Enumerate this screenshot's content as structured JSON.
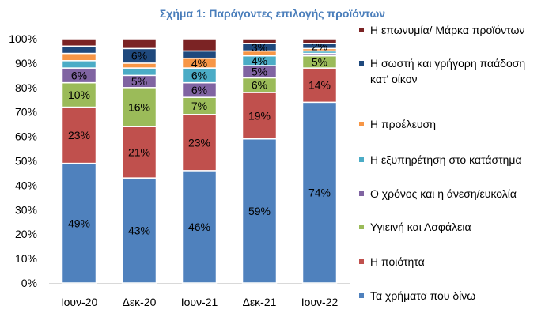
{
  "chart_data": {
    "type": "bar",
    "stacked": true,
    "title": "Σχήμα 1: Παράγοντες επιλογής προϊόντων",
    "categories": [
      "Ιουν-20",
      "Δεκ-20",
      "Ιουν-21",
      "Δεκ-21",
      "Ιουν-22"
    ],
    "ylim": [
      0,
      100
    ],
    "yticks": [
      "0%",
      "10%",
      "20%",
      "30%",
      "40%",
      "50%",
      "60%",
      "70%",
      "80%",
      "90%",
      "100%"
    ],
    "series": [
      {
        "name": "Τα χρήματα που δίνω",
        "color": "#4f81bd",
        "values": [
          49,
          43,
          46,
          59,
          74
        ],
        "labels": [
          "49%",
          "43%",
          "46%",
          "59%",
          "74%"
        ],
        "label_color": "#000000"
      },
      {
        "name": "Η ποιότητα",
        "color": "#c0504d",
        "values": [
          23,
          21,
          23,
          19,
          14
        ],
        "labels": [
          "23%",
          "21%",
          "23%",
          "19%",
          "14%"
        ],
        "label_color": "#000000"
      },
      {
        "name": "Υγιεινή και Ασφάλεια",
        "color": "#9bbb59",
        "values": [
          10,
          16,
          7,
          6,
          5
        ],
        "labels": [
          "10%",
          "16%",
          "7%",
          "6%",
          "5%"
        ],
        "label_color": "#000000"
      },
      {
        "name": "Ο χρόνος και η άνεση/ευκολία",
        "color": "#8064a2",
        "values": [
          6,
          5,
          6,
          5,
          1
        ],
        "labels": [
          "6%",
          "5%",
          "6%",
          "5%",
          ""
        ],
        "label_color": "#000000"
      },
      {
        "name": "Η εξυπηρέτηση στο κατάστημα",
        "color": "#4bacc6",
        "values": [
          3,
          3,
          6,
          4,
          1
        ],
        "labels": [
          "",
          "",
          "6%",
          "4%",
          ""
        ],
        "label_color": "#000000"
      },
      {
        "name": "Η προέλευση",
        "color": "#f79646",
        "values": [
          3,
          2,
          4,
          2,
          1
        ],
        "labels": [
          "",
          "",
          "4%",
          "",
          ""
        ],
        "label_color": "#000000"
      },
      {
        "name": "Η σωστή και γρήγορη παάδοση κατ' οίκον",
        "color": "#1f497d",
        "values": [
          3,
          6,
          3,
          3,
          2
        ],
        "labels": [
          "",
          "6%",
          "",
          "3%",
          "2%"
        ],
        "label_color": "#000000"
      },
      {
        "name": "Η επωνυμία/ Μάρκα προϊόντων",
        "color": "#7b2324",
        "values": [
          3,
          4,
          5,
          2,
          2
        ],
        "labels": [
          "",
          "",
          "",
          "",
          ""
        ],
        "label_color": "#000000"
      }
    ],
    "legend_order": [
      7,
      6,
      5,
      4,
      3,
      2,
      1,
      0
    ],
    "legend_position": "right",
    "grid": false
  }
}
